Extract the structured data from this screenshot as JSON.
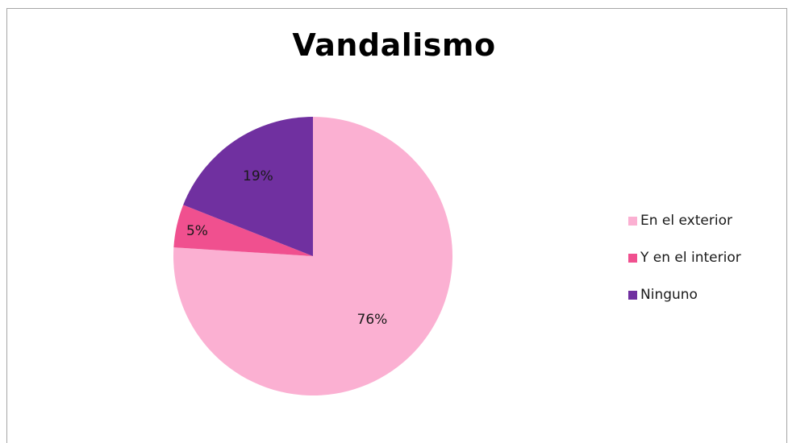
{
  "chart_data": {
    "type": "pie",
    "title": "Vandalismo",
    "categories": [
      "En el exterior",
      "Y en el interior",
      "Ninguno"
    ],
    "values": [
      76,
      5,
      19
    ],
    "data_labels": [
      "76%",
      "5%",
      "19%"
    ],
    "colors": [
      "#fbb0d2",
      "#f0508f",
      "#7030a0"
    ],
    "legend_position": "right"
  }
}
